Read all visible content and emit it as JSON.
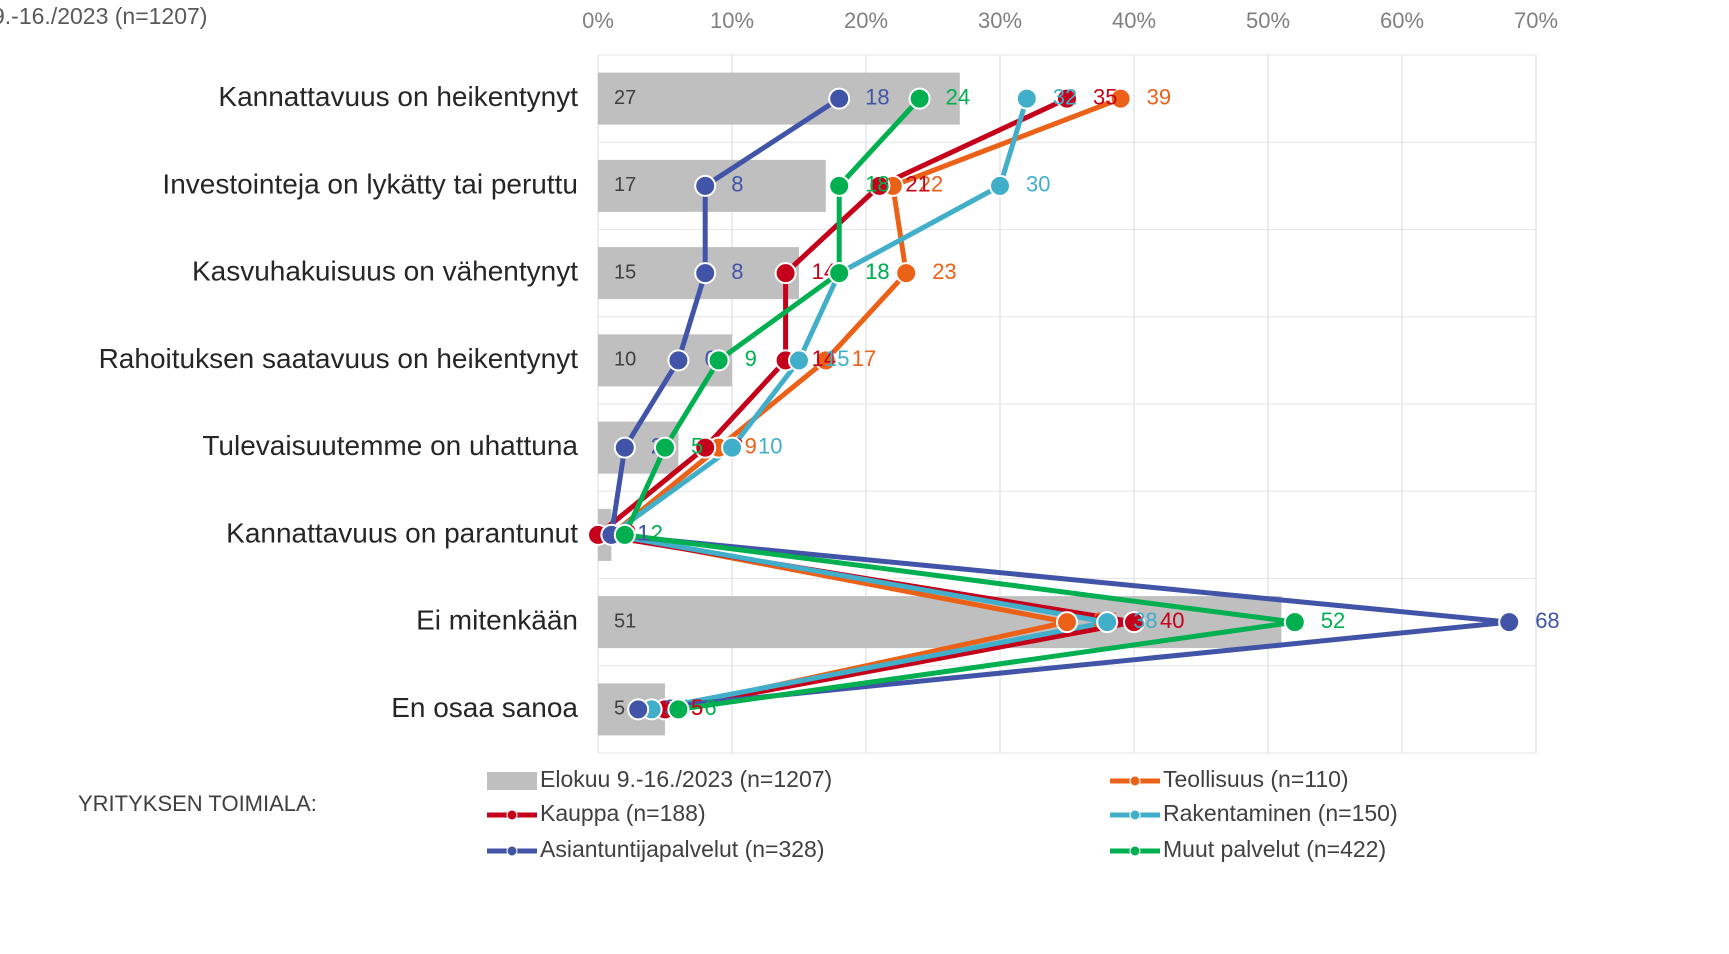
{
  "chart_data": {
    "type": "bar",
    "subtitle": "9.-16./2023 (n=1207)",
    "legend_title": "YRITYKSEN TOIMIALA:",
    "categories": [
      "Kannattavuus on heikentynyt",
      "Investointeja on lykätty tai peruttu",
      "Kasvuhakuisuus on vähentynyt",
      "Rahoituksen saatavuus on heikentynyt",
      "Tulevaisuutemme on uhattuna",
      "Kannattavuus on parantunut",
      "Ei mitenkään",
      "En osaa sanoa"
    ],
    "xlim": [
      0,
      70
    ],
    "xticks": [
      {
        "value": 0,
        "label": "0%"
      },
      {
        "value": 10,
        "label": "10%"
      },
      {
        "value": 20,
        "label": "20%"
      },
      {
        "value": 30,
        "label": "30%"
      },
      {
        "value": 40,
        "label": "40%"
      },
      {
        "value": 50,
        "label": "50%"
      },
      {
        "value": 60,
        "label": "60%"
      },
      {
        "value": 70,
        "label": "70%"
      }
    ],
    "grid": true,
    "series": [
      {
        "name": "Elokuu 9.-16./2023 (n=1207)",
        "kind": "bar",
        "color": "#bfbfbf",
        "values": [
          27,
          17,
          15,
          10,
          6,
          1,
          51,
          5
        ]
      },
      {
        "name": "Teollisuus (n=110)",
        "kind": "line",
        "color": "#ec6118",
        "values": [
          39,
          22,
          23,
          17,
          9,
          1,
          35,
          5
        ]
      },
      {
        "name": "Kauppa (n=188)",
        "kind": "line",
        "color": "#c5001a",
        "values": [
          35,
          21,
          14,
          14,
          8,
          0,
          40,
          5
        ]
      },
      {
        "name": "Rakentaminen (n=150)",
        "kind": "line",
        "color": "#41afca",
        "values": [
          32,
          30,
          18,
          15,
          10,
          1,
          38,
          4
        ]
      },
      {
        "name": "Asiantuntijapalvelut (n=328)",
        "kind": "line",
        "color": "#4254a8",
        "values": [
          18,
          8,
          8,
          6,
          2,
          1,
          68,
          3
        ]
      },
      {
        "name": "Muut palvelut (n=422)",
        "kind": "line",
        "color": "#00b050",
        "values": [
          24,
          18,
          18,
          9,
          5,
          2,
          52,
          6
        ]
      }
    ]
  }
}
